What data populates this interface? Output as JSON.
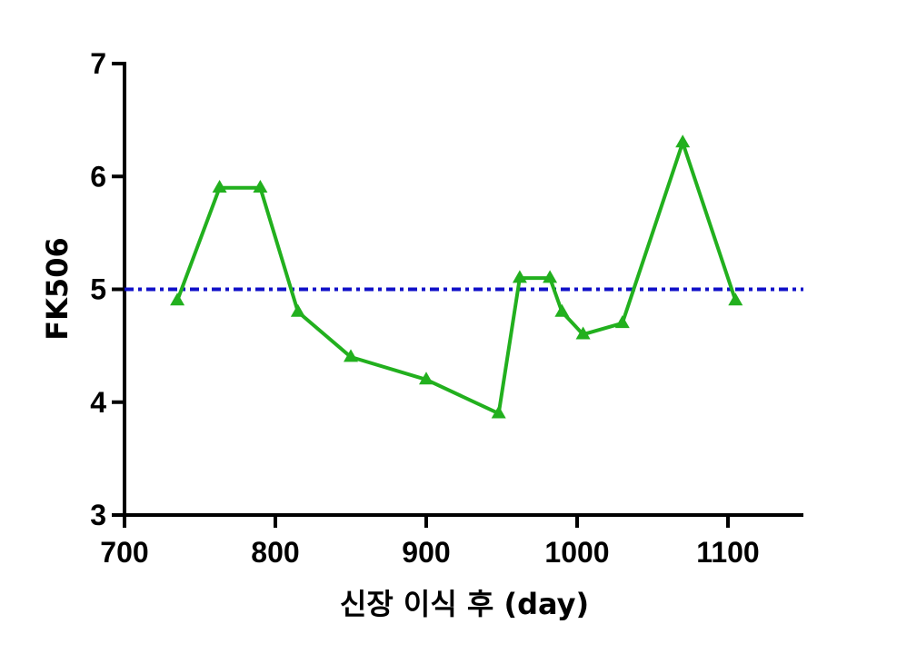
{
  "chart_data": {
    "type": "line",
    "title": "",
    "xlabel": "신장 이식 후 (day)",
    "ylabel": "FK506",
    "xlim": [
      700,
      1150
    ],
    "ylim": [
      3,
      7
    ],
    "xticks": [
      700,
      800,
      900,
      1000,
      1100
    ],
    "yticks": [
      3,
      4,
      5,
      6,
      7
    ],
    "grid": false,
    "legend": "none",
    "series": [
      {
        "color": "#22b01e",
        "marker": "triangle",
        "x": [
          735,
          763,
          790,
          815,
          850,
          900,
          948,
          962,
          982,
          990,
          1004,
          1030,
          1070,
          1105
        ],
        "y": [
          4.9,
          5.9,
          5.9,
          4.8,
          4.4,
          4.2,
          3.9,
          5.1,
          5.1,
          4.8,
          4.6,
          4.7,
          6.3,
          4.9
        ]
      }
    ],
    "reference_line": {
      "y": 5,
      "color": "#1010c8",
      "style": "dash-dot"
    }
  }
}
